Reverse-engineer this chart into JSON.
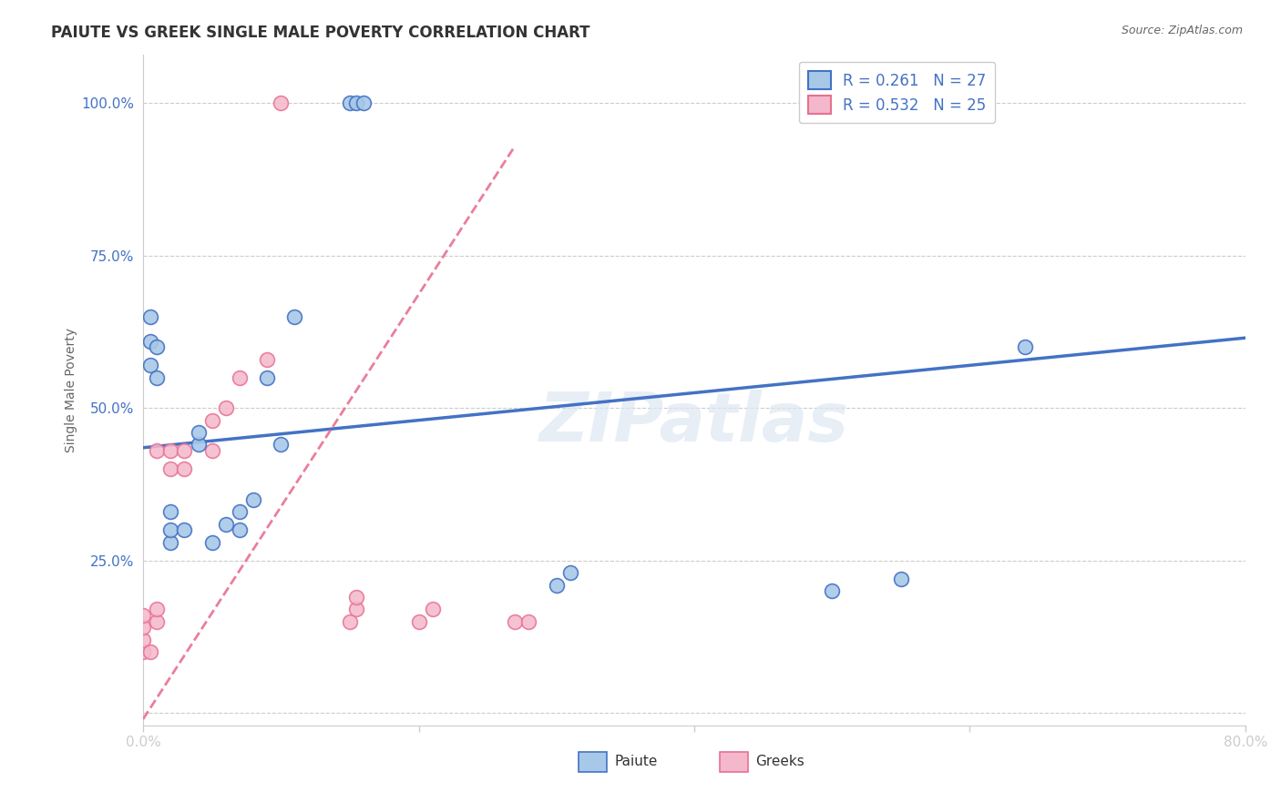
{
  "title": "PAIUTE VS GREEK SINGLE MALE POVERTY CORRELATION CHART",
  "source": "Source: ZipAtlas.com",
  "ylabel": "Single Male Poverty",
  "xlim": [
    0.0,
    0.8
  ],
  "ylim": [
    -0.02,
    1.08
  ],
  "legend_label1": "Paiute",
  "legend_label2": "Greeks",
  "R1": "0.261",
  "N1": "27",
  "R2": "0.532",
  "N2": "25",
  "color_paiute_fill": "#a8c8e8",
  "color_paiute_edge": "#4472C4",
  "color_greek_fill": "#f4b8cc",
  "color_greek_edge": "#e87090",
  "color_line_paiute": "#4472C4",
  "color_line_greek": "#e87090",
  "watermark": "ZIPatlas",
  "paiute_x": [
    0.005,
    0.005,
    0.005,
    0.01,
    0.01,
    0.02,
    0.02,
    0.02,
    0.03,
    0.04,
    0.04,
    0.05,
    0.06,
    0.07,
    0.07,
    0.08,
    0.09,
    0.1,
    0.11,
    0.15,
    0.155,
    0.16,
    0.3,
    0.31,
    0.5,
    0.55,
    0.64
  ],
  "paiute_y": [
    0.57,
    0.61,
    0.65,
    0.55,
    0.6,
    0.28,
    0.3,
    0.33,
    0.3,
    0.44,
    0.46,
    0.28,
    0.31,
    0.3,
    0.33,
    0.35,
    0.55,
    0.44,
    0.65,
    1.0,
    1.0,
    1.0,
    0.21,
    0.23,
    0.2,
    0.22,
    0.6
  ],
  "greek_x": [
    0.0,
    0.0,
    0.0,
    0.0,
    0.005,
    0.01,
    0.01,
    0.01,
    0.02,
    0.02,
    0.03,
    0.03,
    0.05,
    0.05,
    0.06,
    0.07,
    0.09,
    0.1,
    0.15,
    0.155,
    0.155,
    0.2,
    0.21,
    0.27,
    0.28
  ],
  "greek_y": [
    0.1,
    0.12,
    0.14,
    0.16,
    0.1,
    0.43,
    0.15,
    0.17,
    0.4,
    0.43,
    0.4,
    0.43,
    0.43,
    0.48,
    0.5,
    0.55,
    0.58,
    1.0,
    0.15,
    0.17,
    0.19,
    0.15,
    0.17,
    0.15,
    0.15
  ],
  "blue_line_x": [
    0.0,
    0.8
  ],
  "blue_line_y": [
    0.435,
    0.615
  ],
  "pink_line_x": [
    0.0,
    0.27
  ],
  "pink_line_y": [
    -0.01,
    0.93
  ]
}
